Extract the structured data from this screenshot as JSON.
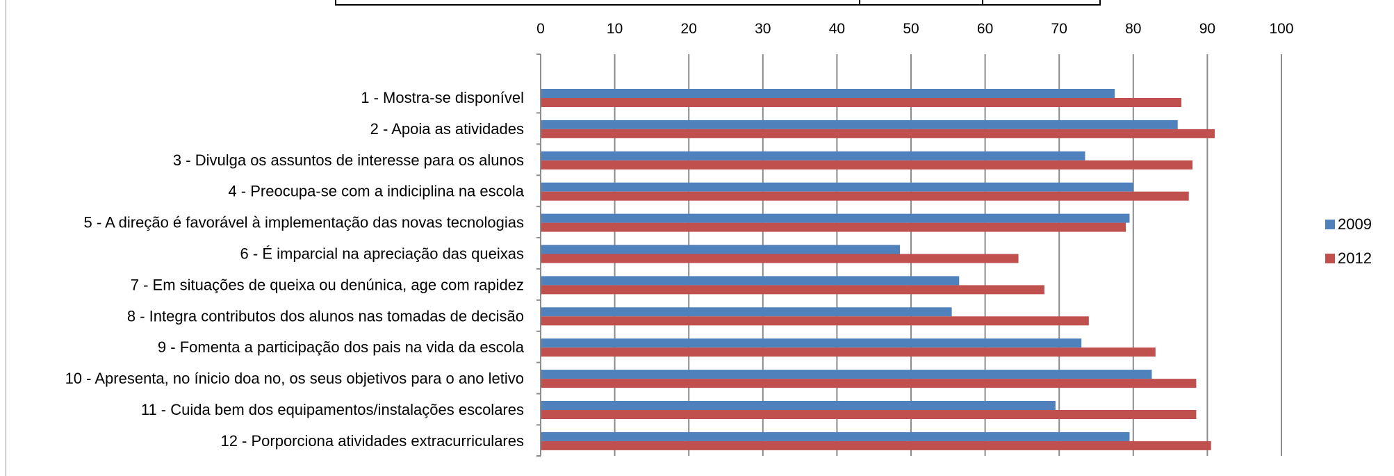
{
  "chart_data": {
    "type": "bar",
    "orientation": "horizontal",
    "title": "",
    "categories": [
      "1 - Mostra-se disponível",
      "2 - Apoia as atividades",
      "3 - Divulga os assuntos de interesse para os alunos",
      "4 - Preocupa-se com a indiciplina na escola",
      "5 - A direção é favorável à implementação das novas tecnologias",
      "6 - É imparcial na apreciação das queixas",
      "7 - Em situações de queixa ou denúnica, age com rapidez",
      "8 - Integra contributos dos alunos nas tomadas de decisão",
      "9 - Fomenta a participação dos pais na vida da escola",
      "10 - Apresenta, no ínicio doa no, os seus objetivos para o ano letivo",
      "11 - Cuida bem dos equipamentos/instalações escolares",
      "12 - Porporciona atividades extracurriculares"
    ],
    "series": [
      {
        "name": "2009",
        "color": "#4F81BD",
        "values": [
          77.5,
          86,
          73.5,
          80,
          79.5,
          48.5,
          56.5,
          55.5,
          73,
          82.5,
          69.5,
          79.5
        ]
      },
      {
        "name": "2012",
        "color": "#C0504D",
        "values": [
          86.5,
          91,
          88,
          87.5,
          79,
          64.5,
          68,
          74,
          83,
          88.5,
          88.5,
          90.5
        ]
      }
    ],
    "xlim": [
      0,
      100
    ],
    "xticks": [
      "0",
      "10",
      "20",
      "30",
      "40",
      "50",
      "60",
      "70",
      "80",
      "90",
      "100"
    ],
    "grid": true,
    "axis_position": "top",
    "legend_position": "right"
  }
}
